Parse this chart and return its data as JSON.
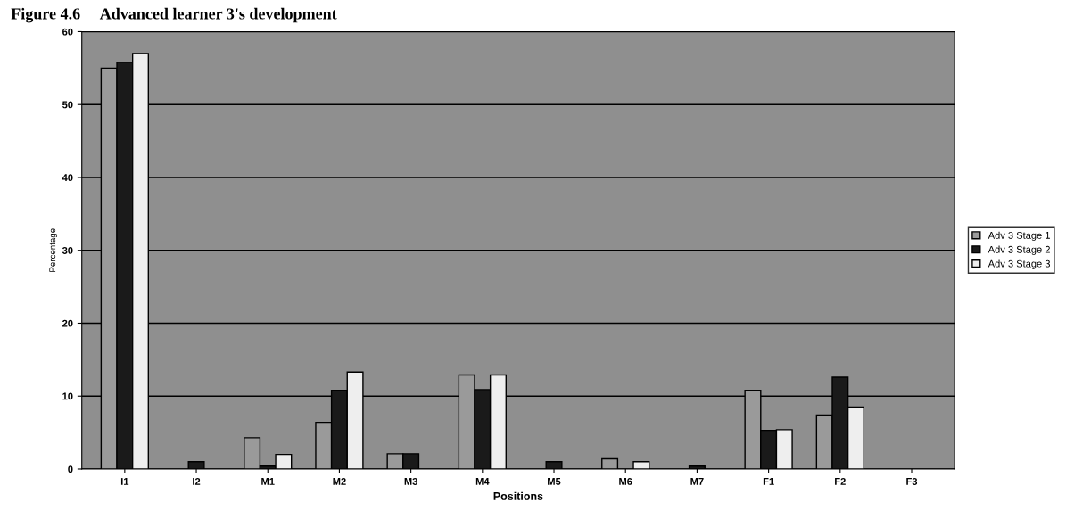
{
  "chart_data": {
    "type": "bar",
    "title": "Figure 4.6     Advanced learner 3's development",
    "xlabel": "Positions",
    "ylabel": "Percentage",
    "categories": [
      "I1",
      "I2",
      "M1",
      "M2",
      "M3",
      "M4",
      "M5",
      "M6",
      "M7",
      "F1",
      "F2",
      "F3"
    ],
    "series": [
      {
        "name": "Adv 3 Stage 1",
        "color": "#9a9a9a",
        "values": [
          55,
          0,
          4.3,
          6.4,
          2.1,
          12.9,
          0,
          1.4,
          0,
          10.8,
          7.4,
          0
        ]
      },
      {
        "name": "Adv 3 Stage 2",
        "color": "#1a1a1a",
        "values": [
          55.8,
          1,
          0.4,
          10.8,
          2.1,
          10.9,
          1,
          0,
          0.4,
          5.3,
          12.6,
          0
        ]
      },
      {
        "name": "Adv 3 Stage 3",
        "color": "#eeeeee",
        "values": [
          57,
          0,
          2,
          13.3,
          0,
          12.9,
          0,
          1,
          0,
          5.4,
          8.5,
          0
        ]
      }
    ],
    "ylim": [
      0,
      60
    ],
    "yticks": [
      0,
      10,
      20,
      30,
      40,
      50,
      60
    ],
    "grid": "y",
    "legend": "right"
  }
}
